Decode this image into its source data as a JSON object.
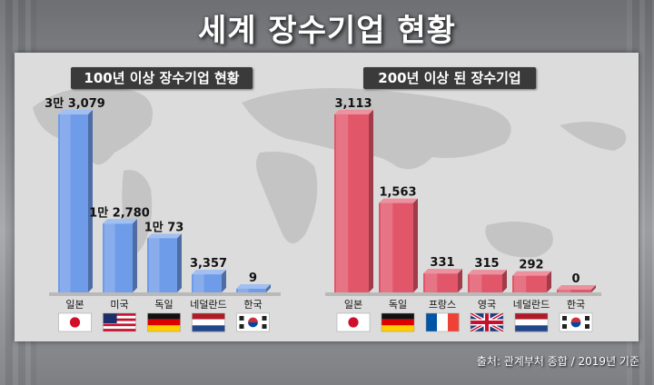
{
  "title": "세계 장수기업 현황",
  "source": "출처: 관계부처 종합 / 2019년 기준",
  "chart_data": [
    {
      "type": "bar",
      "title": "100년 이상 장수기업 현황",
      "categories": [
        "일본",
        "미국",
        "독일",
        "네덜란드",
        "한국"
      ],
      "values": [
        33079,
        12780,
        10073,
        3357,
        9
      ],
      "value_labels": [
        "3만 3,079",
        "1만 2,780",
        "1만 73",
        "3,357",
        "9"
      ],
      "flags": [
        "flag-japan",
        "flag-usa",
        "flag-germany",
        "flag-netherlands",
        "flag-korea"
      ],
      "color": "#6f9ce8"
    },
    {
      "type": "bar",
      "title": "200년 이상 된 장수기업",
      "categories": [
        "일본",
        "독일",
        "프랑스",
        "영국",
        "네덜란드",
        "한국"
      ],
      "values": [
        3113,
        1563,
        331,
        315,
        292,
        0
      ],
      "value_labels": [
        "3,113",
        "1,563",
        "331",
        "315",
        "292",
        "0"
      ],
      "flags": [
        "flag-japan",
        "flag-germany",
        "flag-france",
        "flag-uk",
        "flag-netherlands",
        "flag-korea"
      ],
      "color": "#e2566a"
    }
  ]
}
